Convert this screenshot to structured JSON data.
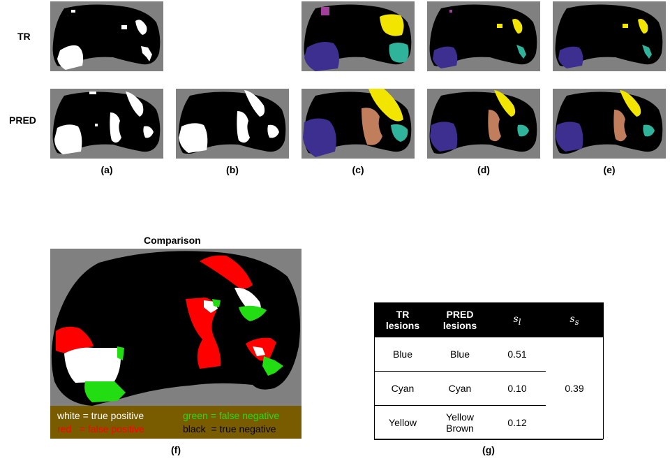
{
  "rows": {
    "tr": "TR",
    "pred": "PRED"
  },
  "captions": {
    "a": "(a)",
    "b": "(b)",
    "c": "(c)",
    "d": "(d)",
    "e": "(e)",
    "f": "(f)",
    "g": "(g)"
  },
  "comparison": {
    "title": "Comparison",
    "legend": {
      "tp_color": "white",
      "tp_text": " = true positive",
      "fp_color": "red",
      "fp_text": "   = false positive",
      "fn_color": "green",
      "fn_text": " = false negative",
      "tn_color": "black",
      "tn_text": "  = true negative"
    }
  },
  "table": {
    "headers": {
      "tr1": "TR",
      "tr2": "lesions",
      "pred1": "PRED",
      "pred2": "lesions",
      "sl_main": "s",
      "sl_sub": "l",
      "ss_main": "s",
      "ss_sub": "s"
    },
    "rows": [
      {
        "tr": "Blue",
        "pred1": "Blue",
        "pred2": "",
        "sl": "0.51"
      },
      {
        "tr": "Cyan",
        "pred1": "Cyan",
        "pred2": "",
        "sl": "0.10"
      },
      {
        "tr": "Yellow",
        "pred1": "Yellow",
        "pred2": "Brown",
        "sl": "0.12"
      }
    ],
    "ss": "0.39"
  },
  "colors": {
    "background": "#808080",
    "brain": "#000000",
    "lesion": "#ffffff",
    "blue": "#3c2f8f",
    "yellow": "#f2e600",
    "cyan": "#2fb39a",
    "brown": "#c07e5c",
    "magenta": "#a0409a",
    "red": "#ff0000",
    "green": "#22dd11",
    "legend_bg": "#7a5c00"
  }
}
